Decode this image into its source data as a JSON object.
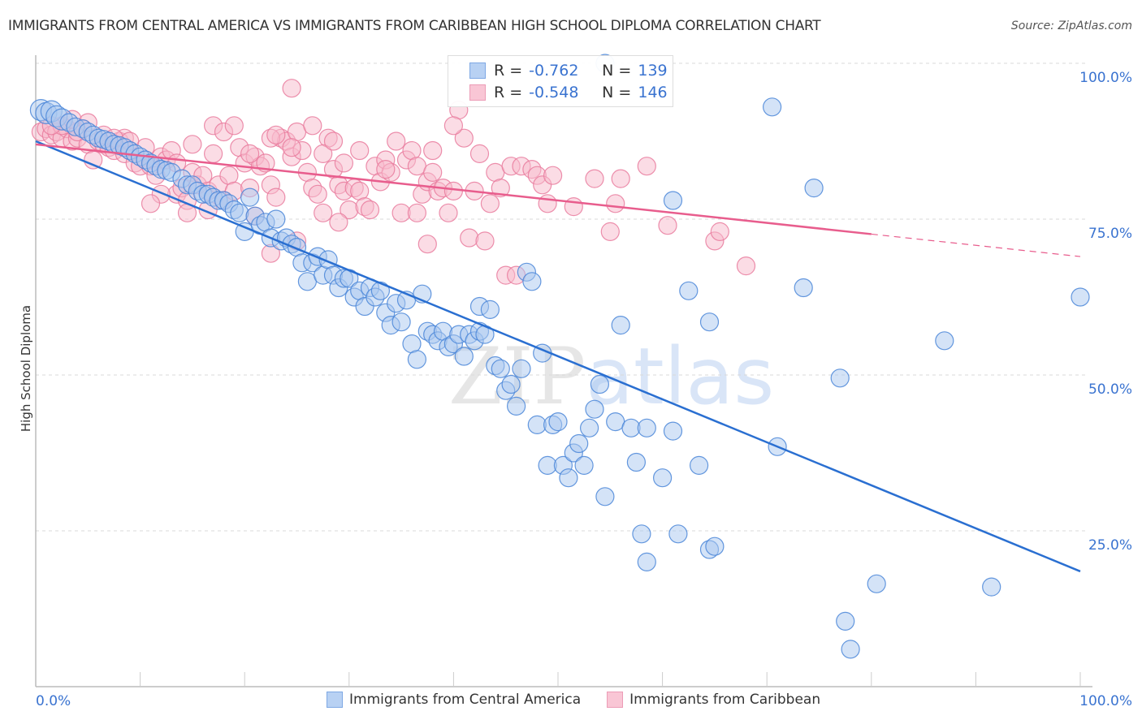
{
  "header": {
    "title": "IMMIGRANTS FROM CENTRAL AMERICA VS IMMIGRANTS FROM CARIBBEAN HIGH SCHOOL DIPLOMA CORRELATION CHART",
    "source": "Source: ZipAtlas.com"
  },
  "watermark": {
    "zip": "ZIP",
    "atlas": "atlas"
  },
  "stats_legend": {
    "rows": [
      {
        "r_label": "R =",
        "r_value": "-0.762",
        "n_label": "N =",
        "n_value": "139"
      },
      {
        "r_label": "R =",
        "r_value": "-0.548",
        "n_label": "N =",
        "n_value": "146"
      }
    ]
  },
  "chart_data": {
    "type": "scatter",
    "title": "IMMIGRANTS FROM CENTRAL AMERICA VS IMMIGRANTS FROM CARIBBEAN HIGH SCHOOL DIPLOMA CORRELATION CHART",
    "xlabel": "",
    "ylabel": "High School Diploma",
    "xlim": [
      0,
      100
    ],
    "ylim": [
      0,
      100
    ],
    "x_tick_labels": [
      "0.0%",
      "100.0%"
    ],
    "y_ticks": [
      25,
      50,
      75,
      100
    ],
    "y_tick_labels": [
      "25.0%",
      "50.0%",
      "75.0%",
      "100.0%"
    ],
    "grid": true,
    "legend_position": "bottom",
    "colors": {
      "central_america_fill": "#a9c8f0",
      "central_america_stroke": "#4a86d8",
      "central_america_line": "#2a6fd1",
      "caribbean_fill": "#f7b9cb",
      "caribbean_stroke": "#e97b9e",
      "caribbean_line": "#e85d8d"
    },
    "series": [
      {
        "name": "Immigrants from Central America",
        "r": -0.762,
        "n": 139,
        "trend": {
          "x0": 0,
          "y0": 87.5,
          "x1": 100,
          "y1": 18.5,
          "dashed_from": null
        },
        "points": [
          [
            0.5,
            92.5
          ],
          [
            1.0,
            92.0
          ],
          [
            1.5,
            92.3
          ],
          [
            2.0,
            91.5
          ],
          [
            2.5,
            91.0
          ],
          [
            3.2,
            90.5
          ],
          [
            3.8,
            89.8
          ],
          [
            4.5,
            89.5
          ],
          [
            5.0,
            89.0
          ],
          [
            5.5,
            88.5
          ],
          [
            6.0,
            88.0
          ],
          [
            6.5,
            87.8
          ],
          [
            7.0,
            87.5
          ],
          [
            7.5,
            87.0
          ],
          [
            8.0,
            86.8
          ],
          [
            8.5,
            86.5
          ],
          [
            9.0,
            86.0
          ],
          [
            9.5,
            85.5
          ],
          [
            10.0,
            85.0
          ],
          [
            10.5,
            84.5
          ],
          [
            11.0,
            84.0
          ],
          [
            11.5,
            83.5
          ],
          [
            12.0,
            83.0
          ],
          [
            12.5,
            82.8
          ],
          [
            13.0,
            82.5
          ],
          [
            14.0,
            81.5
          ],
          [
            14.5,
            80.5
          ],
          [
            15.0,
            80.5
          ],
          [
            15.5,
            79.5
          ],
          [
            16.0,
            79.0
          ],
          [
            16.5,
            79.0
          ],
          [
            17.0,
            78.5
          ],
          [
            17.5,
            78.0
          ],
          [
            18.0,
            78.0
          ],
          [
            18.5,
            77.5
          ],
          [
            19.0,
            76.5
          ],
          [
            19.5,
            76.0
          ],
          [
            20.0,
            73.0
          ],
          [
            20.5,
            78.5
          ],
          [
            21.0,
            75.5
          ],
          [
            21.5,
            74.0
          ],
          [
            22.0,
            74.5
          ],
          [
            22.5,
            72.0
          ],
          [
            23.0,
            75.0
          ],
          [
            23.5,
            71.5
          ],
          [
            24.0,
            72.0
          ],
          [
            24.5,
            71.0
          ],
          [
            25.0,
            70.5
          ],
          [
            25.5,
            68.0
          ],
          [
            26.0,
            65.0
          ],
          [
            26.5,
            68.0
          ],
          [
            27.0,
            69.0
          ],
          [
            27.5,
            66.0
          ],
          [
            28.0,
            68.5
          ],
          [
            28.5,
            66.0
          ],
          [
            29.0,
            64.0
          ],
          [
            29.5,
            65.5
          ],
          [
            30.0,
            65.5
          ],
          [
            30.5,
            62.5
          ],
          [
            31.0,
            63.5
          ],
          [
            31.5,
            61.0
          ],
          [
            32.0,
            64.0
          ],
          [
            32.5,
            62.5
          ],
          [
            33.0,
            63.5
          ],
          [
            33.5,
            60.0
          ],
          [
            34.0,
            58.0
          ],
          [
            34.5,
            61.5
          ],
          [
            35.0,
            58.5
          ],
          [
            35.5,
            62.0
          ],
          [
            36.0,
            55.0
          ],
          [
            36.5,
            52.5
          ],
          [
            37.0,
            63.0
          ],
          [
            37.5,
            57.0
          ],
          [
            38.0,
            56.5
          ],
          [
            38.5,
            55.5
          ],
          [
            39.0,
            57.0
          ],
          [
            39.5,
            54.5
          ],
          [
            40.0,
            55.0
          ],
          [
            40.5,
            56.5
          ],
          [
            41.0,
            53.0
          ],
          [
            41.5,
            56.5
          ],
          [
            42.0,
            55.5
          ],
          [
            42.5,
            57.0
          ],
          [
            42.5,
            61.0
          ],
          [
            43.0,
            56.5
          ],
          [
            43.5,
            60.5
          ],
          [
            44.0,
            51.5
          ],
          [
            44.5,
            51.0
          ],
          [
            45.0,
            47.5
          ],
          [
            45.5,
            48.5
          ],
          [
            46.0,
            45.0
          ],
          [
            46.5,
            51.0
          ],
          [
            47.0,
            66.5
          ],
          [
            47.5,
            65.0
          ],
          [
            48.0,
            42.0
          ],
          [
            48.5,
            53.5
          ],
          [
            49.0,
            35.5
          ],
          [
            49.5,
            42.0
          ],
          [
            50.0,
            42.5
          ],
          [
            50.5,
            35.5
          ],
          [
            51.0,
            33.5
          ],
          [
            51.5,
            37.5
          ],
          [
            52.0,
            39.0
          ],
          [
            52.5,
            35.5
          ],
          [
            53.0,
            41.5
          ],
          [
            53.5,
            44.5
          ],
          [
            54.0,
            48.5
          ],
          [
            54.5,
            30.5
          ],
          [
            55.5,
            42.5
          ],
          [
            56.0,
            58.0
          ],
          [
            57.0,
            41.5
          ],
          [
            57.5,
            36.0
          ],
          [
            58.5,
            41.5
          ],
          [
            58.0,
            24.5
          ],
          [
            58.5,
            20.0
          ],
          [
            60.0,
            33.5
          ],
          [
            61.0,
            41.0
          ],
          [
            61.5,
            24.5
          ],
          [
            62.5,
            63.5
          ],
          [
            63.5,
            35.5
          ],
          [
            64.5,
            58.5
          ],
          [
            64.5,
            22.0
          ],
          [
            65.0,
            22.5
          ],
          [
            61.0,
            78.0
          ],
          [
            70.5,
            93.0
          ],
          [
            71.0,
            38.5
          ],
          [
            73.5,
            64.0
          ],
          [
            74.5,
            80.0
          ],
          [
            77.0,
            49.5
          ],
          [
            80.5,
            16.5
          ],
          [
            77.5,
            10.5
          ],
          [
            78.0,
            6.0
          ],
          [
            87.0,
            55.5
          ],
          [
            91.5,
            16.0
          ],
          [
            100.0,
            62.5
          ],
          [
            54.5,
            100.0
          ]
        ]
      },
      {
        "name": "Immigrants from Caribbean",
        "r": -0.548,
        "n": 146,
        "trend": {
          "x0": 0,
          "y0": 87.0,
          "x1": 100,
          "y1": 69.0,
          "dashed_from": 80
        },
        "points": [
          [
            0.5,
            89.0
          ],
          [
            1.0,
            89.5
          ],
          [
            1.5,
            88.5
          ],
          [
            2.0,
            89.0
          ],
          [
            2.5,
            88.0
          ],
          [
            3.0,
            89.5
          ],
          [
            3.5,
            87.5
          ],
          [
            4.0,
            88.0
          ],
          [
            4.5,
            89.5
          ],
          [
            5.0,
            87.0
          ],
          [
            5.5,
            84.5
          ],
          [
            6.0,
            87.5
          ],
          [
            6.5,
            87.0
          ],
          [
            7.0,
            86.5
          ],
          [
            7.5,
            86.0
          ],
          [
            8.0,
            87.5
          ],
          [
            8.5,
            85.5
          ],
          [
            9.0,
            86.0
          ],
          [
            9.5,
            84.0
          ],
          [
            10.0,
            83.5
          ],
          [
            10.5,
            84.5
          ],
          [
            11.0,
            83.5
          ],
          [
            11.5,
            82.0
          ],
          [
            12.0,
            85.0
          ],
          [
            12.5,
            84.5
          ],
          [
            13.0,
            86.0
          ],
          [
            13.5,
            79.0
          ],
          [
            14.0,
            80.0
          ],
          [
            14.5,
            78.0
          ],
          [
            15.0,
            82.5
          ],
          [
            15.5,
            80.5
          ],
          [
            16.0,
            82.0
          ],
          [
            16.5,
            79.5
          ],
          [
            17.0,
            85.5
          ],
          [
            17.5,
            80.5
          ],
          [
            18.0,
            78.0
          ],
          [
            18.5,
            82.0
          ],
          [
            19.0,
            79.5
          ],
          [
            19.5,
            86.5
          ],
          [
            20.0,
            84.0
          ],
          [
            20.5,
            80.0
          ],
          [
            21.0,
            85.0
          ],
          [
            21.5,
            83.5
          ],
          [
            22.0,
            84.0
          ],
          [
            22.5,
            80.5
          ],
          [
            23.0,
            78.5
          ],
          [
            23.5,
            88.0
          ],
          [
            24.0,
            87.5
          ],
          [
            24.5,
            85.0
          ],
          [
            25.0,
            89.0
          ],
          [
            25.5,
            86.0
          ],
          [
            26.0,
            82.5
          ],
          [
            26.5,
            80.0
          ],
          [
            27.0,
            79.0
          ],
          [
            27.5,
            76.0
          ],
          [
            28.0,
            88.0
          ],
          [
            28.5,
            83.0
          ],
          [
            29.0,
            80.5
          ],
          [
            29.5,
            79.5
          ],
          [
            30.0,
            76.5
          ],
          [
            30.5,
            80.0
          ],
          [
            31.0,
            79.5
          ],
          [
            31.5,
            77.0
          ],
          [
            32.0,
            76.5
          ],
          [
            32.5,
            83.5
          ],
          [
            33.0,
            81.0
          ],
          [
            33.5,
            84.5
          ],
          [
            34.0,
            82.5
          ],
          [
            34.5,
            87.5
          ],
          [
            35.0,
            76.0
          ],
          [
            35.5,
            84.5
          ],
          [
            36.0,
            86.0
          ],
          [
            36.5,
            83.5
          ],
          [
            37.0,
            79.0
          ],
          [
            37.5,
            81.0
          ],
          [
            38.0,
            82.5
          ],
          [
            38.5,
            79.5
          ],
          [
            39.0,
            80.0
          ],
          [
            39.5,
            76.0
          ],
          [
            40.0,
            79.5
          ],
          [
            40.5,
            92.5
          ],
          [
            41.0,
            88.0
          ],
          [
            41.5,
            72.0
          ],
          [
            42.0,
            79.5
          ],
          [
            42.5,
            85.5
          ],
          [
            43.0,
            71.5
          ],
          [
            44.0,
            82.5
          ],
          [
            45.0,
            66.0
          ],
          [
            45.5,
            83.5
          ],
          [
            46.0,
            66.0
          ],
          [
            46.5,
            83.5
          ],
          [
            47.5,
            83.0
          ],
          [
            48.0,
            82.0
          ],
          [
            48.5,
            80.5
          ],
          [
            49.0,
            77.5
          ],
          [
            49.5,
            82.0
          ],
          [
            51.5,
            77.0
          ],
          [
            53.5,
            81.5
          ],
          [
            55.0,
            73.0
          ],
          [
            55.5,
            77.5
          ],
          [
            56.0,
            81.5
          ],
          [
            58.5,
            83.5
          ],
          [
            60.5,
            74.0
          ],
          [
            65.0,
            71.5
          ],
          [
            65.5,
            73.0
          ],
          [
            68.0,
            67.5
          ],
          [
            24.5,
            96.0
          ],
          [
            8.5,
            88.0
          ],
          [
            10.5,
            86.5
          ],
          [
            12.0,
            79.0
          ],
          [
            13.5,
            84.0
          ],
          [
            15.0,
            87.0
          ],
          [
            17.0,
            90.0
          ],
          [
            18.0,
            89.0
          ],
          [
            19.0,
            90.0
          ],
          [
            20.5,
            85.5
          ],
          [
            22.5,
            88.0
          ],
          [
            23.0,
            88.5
          ],
          [
            24.5,
            86.5
          ],
          [
            26.5,
            90.0
          ],
          [
            27.5,
            85.5
          ],
          [
            28.5,
            87.5
          ],
          [
            29.5,
            84.0
          ],
          [
            31.0,
            86.0
          ],
          [
            33.5,
            83.0
          ],
          [
            36.5,
            76.0
          ],
          [
            38.0,
            86.0
          ],
          [
            40.0,
            90.0
          ],
          [
            21.0,
            75.5
          ],
          [
            16.5,
            76.5
          ],
          [
            11.0,
            77.5
          ],
          [
            14.5,
            76.0
          ],
          [
            22.5,
            69.5
          ],
          [
            25.0,
            71.5
          ],
          [
            29.0,
            74.5
          ],
          [
            37.5,
            71.0
          ],
          [
            43.5,
            77.5
          ],
          [
            44.5,
            80.0
          ],
          [
            4.0,
            89.0
          ],
          [
            6.5,
            88.5
          ],
          [
            7.5,
            88.0
          ],
          [
            9.0,
            87.5
          ],
          [
            2.5,
            90.0
          ],
          [
            3.5,
            91.0
          ],
          [
            5.0,
            90.5
          ],
          [
            1.5,
            90.0
          ]
        ]
      }
    ]
  },
  "bottom_legend": {
    "items": [
      {
        "label": "Immigrants from Central America"
      },
      {
        "label": "Immigrants from Caribbean"
      }
    ]
  }
}
